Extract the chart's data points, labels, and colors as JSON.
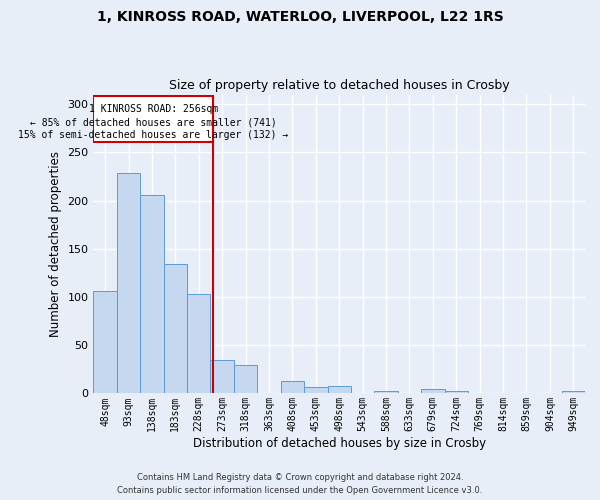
{
  "title_line1": "1, KINROSS ROAD, WATERLOO, LIVERPOOL, L22 1RS",
  "title_line2": "Size of property relative to detached houses in Crosby",
  "xlabel": "Distribution of detached houses by size in Crosby",
  "ylabel": "Number of detached properties",
  "categories": [
    "48sqm",
    "93sqm",
    "138sqm",
    "183sqm",
    "228sqm",
    "273sqm",
    "318sqm",
    "363sqm",
    "408sqm",
    "453sqm",
    "498sqm",
    "543sqm",
    "588sqm",
    "633sqm",
    "679sqm",
    "724sqm",
    "769sqm",
    "814sqm",
    "859sqm",
    "904sqm",
    "949sqm"
  ],
  "values": [
    106,
    229,
    206,
    134,
    103,
    35,
    29,
    0,
    13,
    7,
    8,
    0,
    2,
    0,
    5,
    2,
    0,
    0,
    0,
    0,
    2
  ],
  "bar_color": "#c5d8f0",
  "bar_edge_color": "#5b9bd5",
  "annotation_line_color": "#cc0000",
  "annotation_text_line1": "1 KINROSS ROAD: 256sqm",
  "annotation_text_line2": "← 85% of detached houses are smaller (741)",
  "annotation_text_line3": "15% of semi-detached houses are larger (132) →",
  "ylim": [
    0,
    310
  ],
  "yticks": [
    0,
    50,
    100,
    150,
    200,
    250,
    300
  ],
  "footer_line1": "Contains HM Land Registry data © Crown copyright and database right 2024.",
  "footer_line2": "Contains public sector information licensed under the Open Government Licence v3.0.",
  "bg_color": "#e8eef8"
}
